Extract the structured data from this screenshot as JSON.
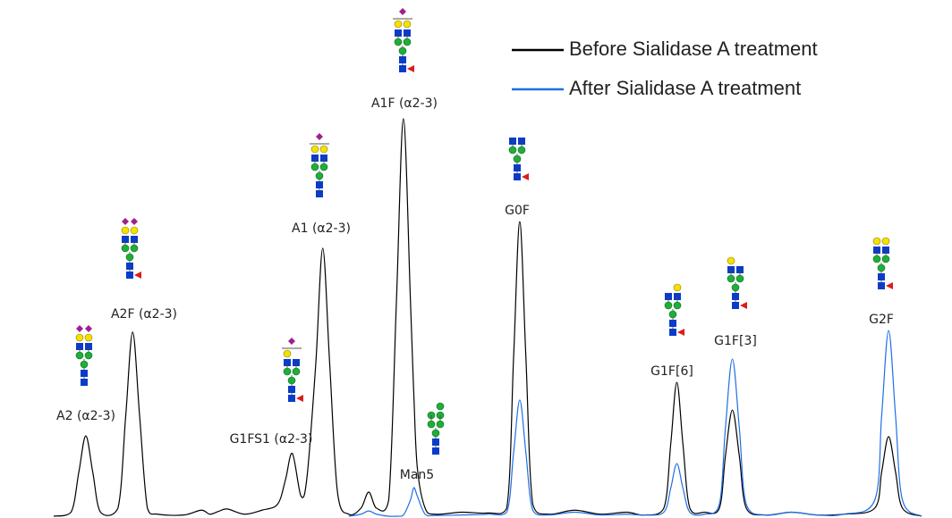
{
  "chart_data": {
    "type": "line",
    "x": [
      0,
      2.0,
      2.9,
      3.7,
      4.5,
      5.4,
      7.4,
      8.3,
      9.1,
      9.9,
      10.8,
      12,
      15,
      17,
      18,
      19,
      20,
      22,
      24,
      25.8,
      26.7,
      27.5,
      28.5,
      29.2,
      30.2,
      31,
      31.8,
      32.7,
      34,
      35.4,
      36.3,
      37.2,
      38.6,
      39.5,
      40.3,
      41.1,
      41.5,
      41.9,
      42.8,
      44,
      47,
      50,
      52.2,
      53,
      53.7,
      54.4,
      55.2,
      57,
      60,
      63,
      66,
      68,
      70.3,
      71.1,
      71.8,
      72.5,
      73.3,
      75,
      76.7,
      77.4,
      78.2,
      79,
      79.8,
      82,
      85,
      88,
      91,
      94.6,
      95.4,
      96.2,
      97,
      97.8,
      100
    ],
    "series": [
      {
        "name": "Before Sialidase A treatment",
        "color": "#000000",
        "values": [
          0,
          1,
          11,
          20,
          11,
          1,
          2,
          25,
          45.8,
          25,
          2,
          0.5,
          0.3,
          1.5,
          0.5,
          1.2,
          1.8,
          0.5,
          1.5,
          3,
          9,
          15.6,
          5,
          10,
          38,
          66.7,
          38,
          6,
          0.5,
          2,
          6,
          2,
          4,
          54,
          98.9,
          54,
          30,
          12,
          2,
          0.5,
          1,
          0.8,
          2,
          40,
          73.3,
          40,
          3,
          0.5,
          1.5,
          0.5,
          1,
          0.3,
          2,
          18,
          33.3,
          18,
          2,
          1,
          2,
          15,
          26.4,
          15,
          2,
          0.3,
          1,
          0.3,
          0.5,
          2,
          11,
          19.8,
          11,
          2,
          0
        ]
      },
      {
        "name": "After Sialidase A treatment",
        "color": "#1e6fe6",
        "values": [
          null,
          null,
          null,
          null,
          null,
          null,
          null,
          null,
          null,
          null,
          null,
          null,
          null,
          null,
          null,
          null,
          null,
          null,
          null,
          null,
          null,
          null,
          null,
          null,
          null,
          null,
          null,
          null,
          0,
          0.5,
          1.3,
          0.5,
          0,
          0,
          0.3,
          4,
          7.1,
          5,
          0.5,
          0.2,
          0.3,
          0.5,
          1,
          16,
          28.9,
          16,
          1.5,
          0.3,
          1,
          0.3,
          0.5,
          0.3,
          1,
          7,
          13.1,
          7,
          1,
          0.5,
          3,
          22,
          39.1,
          22,
          3,
          0.3,
          1,
          0.3,
          0.5,
          4,
          25,
          46.2,
          25,
          4,
          0
        ]
      }
    ],
    "annotations": [
      "A2 (α2-3)",
      "A2F (α2-3)",
      "G1FS1 (α2-3)",
      "A1 (α2-3)",
      "A1F (α2-3)",
      "Man5",
      "G0F",
      "G1F[6]",
      "G1F[3]",
      "G2F"
    ],
    "xlim": [
      0,
      100
    ],
    "ylim": [
      0,
      100
    ]
  }
}
